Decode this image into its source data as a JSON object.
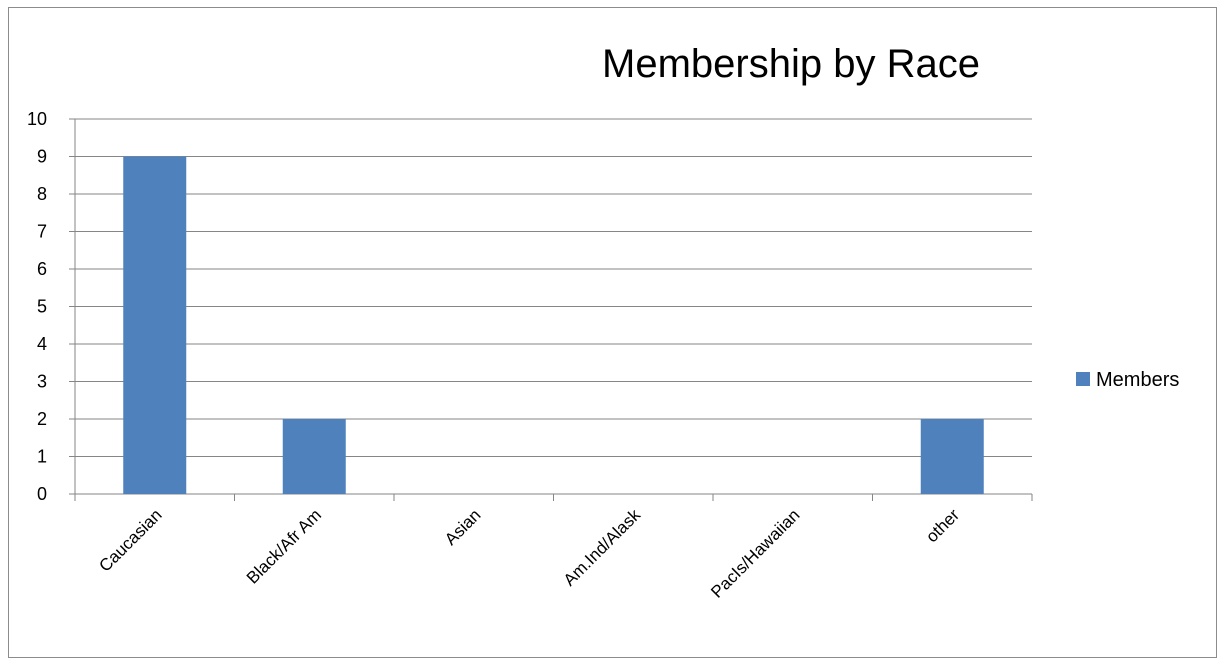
{
  "chart_data": {
    "type": "bar",
    "title": "Membership by Race",
    "categories": [
      "Caucasian",
      "Black/Afr Am",
      "Asian",
      "Am.Ind/Alask",
      "PacIs/Hawaiian",
      "other"
    ],
    "series": [
      {
        "name": "Members",
        "values": [
          9,
          2,
          0,
          0,
          0,
          2
        ],
        "color": "#4f81bd"
      }
    ],
    "ylim": [
      0,
      10
    ],
    "yticks": [
      "0",
      "1",
      "2",
      "3",
      "4",
      "5",
      "6",
      "7",
      "8",
      "9",
      "10"
    ],
    "xlabel": "",
    "ylabel": "",
    "grid": true,
    "legend_position": "right"
  },
  "colors": {
    "bar": "#4f81bd",
    "grid": "#868686",
    "axis": "#868686",
    "frame": "#8c8c8c"
  }
}
